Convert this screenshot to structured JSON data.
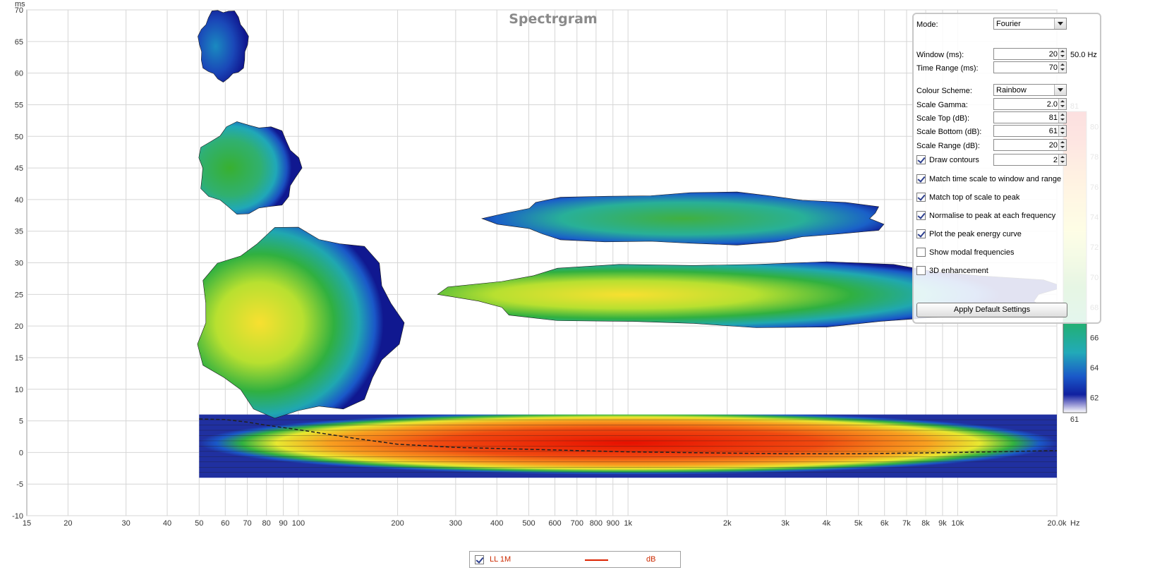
{
  "chart_data": {
    "type": "heatmap",
    "title": "Spectrgram",
    "y_unit_label": "ms",
    "x_unit_label": "Hz",
    "x_scale": "log",
    "xlim": [
      15,
      20000
    ],
    "ylim": [
      -10,
      70
    ],
    "grid": true,
    "x_ticks": [
      {
        "v": 15,
        "t": "15"
      },
      {
        "v": 20,
        "t": "20"
      },
      {
        "v": 30,
        "t": "30"
      },
      {
        "v": 40,
        "t": "40"
      },
      {
        "v": 50,
        "t": "50"
      },
      {
        "v": 60,
        "t": "60"
      },
      {
        "v": 70,
        "t": "70"
      },
      {
        "v": 80,
        "t": "80"
      },
      {
        "v": 90,
        "t": "90"
      },
      {
        "v": 100,
        "t": "100"
      },
      {
        "v": 200,
        "t": "200"
      },
      {
        "v": 300,
        "t": "300"
      },
      {
        "v": 400,
        "t": "400"
      },
      {
        "v": 500,
        "t": "500"
      },
      {
        "v": 600,
        "t": "600"
      },
      {
        "v": 700,
        "t": "700"
      },
      {
        "v": 800,
        "t": "800"
      },
      {
        "v": 900,
        "t": "900"
      },
      {
        "v": 1000,
        "t": "1k"
      },
      {
        "v": 2000,
        "t": "2k"
      },
      {
        "v": 3000,
        "t": "3k"
      },
      {
        "v": 4000,
        "t": "4k"
      },
      {
        "v": 5000,
        "t": "5k"
      },
      {
        "v": 6000,
        "t": "6k"
      },
      {
        "v": 7000,
        "t": "7k"
      },
      {
        "v": 8000,
        "t": "8k"
      },
      {
        "v": 9000,
        "t": "9k"
      },
      {
        "v": 10000,
        "t": "10k"
      },
      {
        "v": 20000,
        "t": "20.0k"
      }
    ],
    "y_ticks": [
      -10,
      -5,
      0,
      5,
      10,
      15,
      20,
      25,
      30,
      35,
      40,
      45,
      50,
      55,
      60,
      65,
      70
    ],
    "colour_scale": {
      "name": "Rainbow",
      "min": 61,
      "max": 81,
      "ticks": [
        61,
        62,
        64,
        66,
        68,
        70,
        72,
        74,
        76,
        78,
        80,
        81
      ]
    },
    "peak_energy_curve": {
      "style": "dashed",
      "x": [
        50,
        60,
        70,
        80,
        100,
        150,
        200,
        300,
        500,
        700,
        1000,
        2000,
        3000,
        5000,
        10000,
        20000
      ],
      "y": [
        5.3,
        5.2,
        4.8,
        4.3,
        3.6,
        2.2,
        1.3,
        0.8,
        0.5,
        0.3,
        0.1,
        -0.1,
        -0.2,
        -0.2,
        0.0,
        0.3
      ]
    },
    "regions": [
      {
        "x": [
          50,
          20000
        ],
        "y": [
          -4,
          6
        ],
        "peak_db": 81
      },
      {
        "x": [
          50,
          200
        ],
        "y": [
          6,
          35
        ],
        "peak_db": 75
      },
      {
        "x": [
          50,
          100
        ],
        "y": [
          38,
          52
        ],
        "peak_db": 69
      },
      {
        "x": [
          50,
          70
        ],
        "y": [
          59,
          70
        ],
        "peak_db": 63
      },
      {
        "x": [
          300,
          20000
        ],
        "y": [
          20,
          30
        ],
        "peak_db": 75
      },
      {
        "x": [
          400,
          6000
        ],
        "y": [
          33,
          41
        ],
        "peak_db": 68
      }
    ],
    "series": [
      {
        "name": "LL 1M",
        "unit": "dB"
      }
    ]
  },
  "panel": {
    "mode_label": "Mode:",
    "mode_value": "Fourier",
    "window_label": "Window (ms):",
    "window_value": "20",
    "window_freq": "50.0 Hz",
    "time_range_label": "Time Range (ms):",
    "time_range_value": "70",
    "colour_scheme_label": "Colour Scheme:",
    "colour_scheme_value": "Rainbow",
    "scale_gamma_label": "Scale Gamma:",
    "scale_gamma_value": "2.0",
    "scale_top_label": "Scale Top (dB):",
    "scale_top_value": "81",
    "scale_bottom_label": "Scale Bottom (dB):",
    "scale_bottom_value": "61",
    "scale_range_label": "Scale Range (dB):",
    "scale_range_value": "20",
    "draw_contours_label": "Draw contours",
    "draw_contours_value": "2",
    "draw_contours_checked": true,
    "options": [
      {
        "label": "Match time scale to window and range",
        "checked": true
      },
      {
        "label": "Match top of scale to peak",
        "checked": true
      },
      {
        "label": "Normalise to peak at each frequency",
        "checked": true
      },
      {
        "label": "Plot the peak energy curve",
        "checked": true
      },
      {
        "label": "Show modal frequencies",
        "checked": false
      },
      {
        "label": "3D enhancement",
        "checked": false
      }
    ],
    "apply_label": "Apply Default Settings"
  },
  "legend": {
    "checked": true,
    "name": "LL 1M",
    "line_color": "#dd2200",
    "unit": "dB"
  }
}
